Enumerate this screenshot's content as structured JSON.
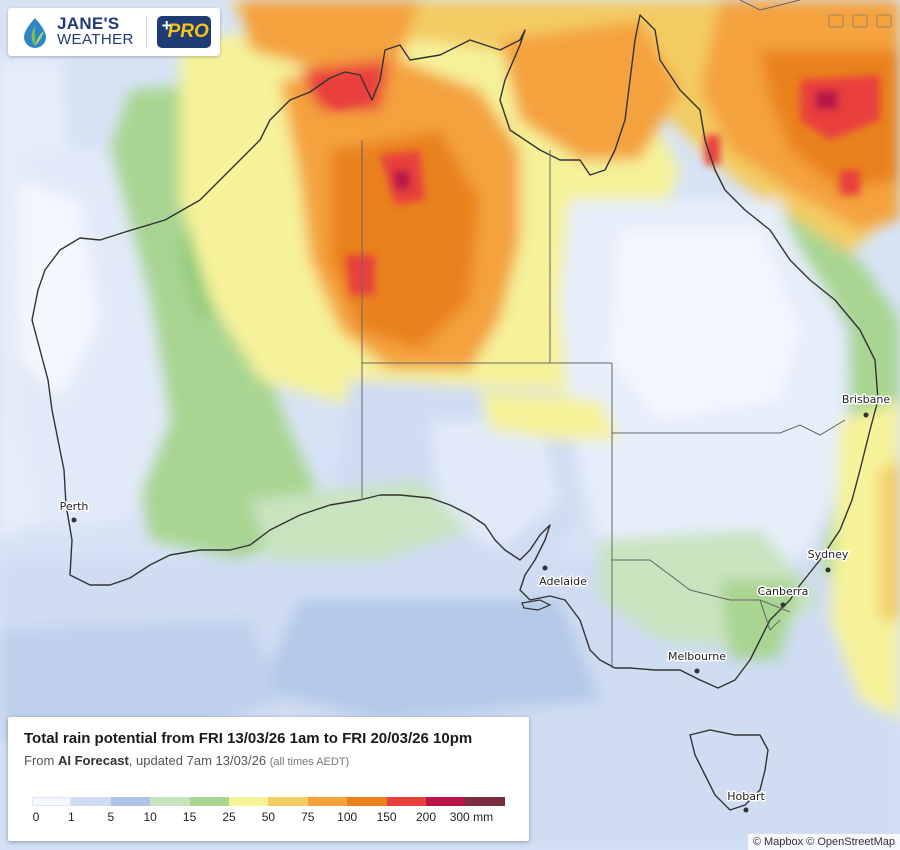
{
  "logo": {
    "line1": "JANE'S",
    "line2": "WEATHER",
    "pro_plus": "+",
    "pro_label": "PRO"
  },
  "map": {
    "cities": [
      {
        "name": "Perth",
        "id": "perth"
      },
      {
        "name": "Adelaide",
        "id": "adelaide"
      },
      {
        "name": "Melbourne",
        "id": "melbourne"
      },
      {
        "name": "Canberra",
        "id": "canberra"
      },
      {
        "name": "Sydney",
        "id": "sydney"
      },
      {
        "name": "Brisbane",
        "id": "brisbane"
      },
      {
        "name": "Hobart",
        "id": "hobart"
      }
    ]
  },
  "legend": {
    "title": "Total rain potential from FRI 13/03/26 1am to FRI 20/03/26 10pm",
    "sub_prefix": "From",
    "sub_source": "AI Forecast",
    "sub_updated": ", updated 7am 13/03/26",
    "sub_note": "(all times AEDT)",
    "colors": [
      "#f4f7fd",
      "#cfdcf2",
      "#aec4e6",
      "#c9e3bf",
      "#a8d592",
      "#f5f29a",
      "#f3cc63",
      "#f4a23c",
      "#e9821a",
      "#e9413d",
      "#b81546",
      "#7a2e3f"
    ],
    "labels": [
      "0",
      "1",
      "5",
      "10",
      "15",
      "25",
      "50",
      "75",
      "100",
      "150",
      "200",
      "300 mm"
    ]
  },
  "attribution": "© Mapbox © OpenStreetMap"
}
